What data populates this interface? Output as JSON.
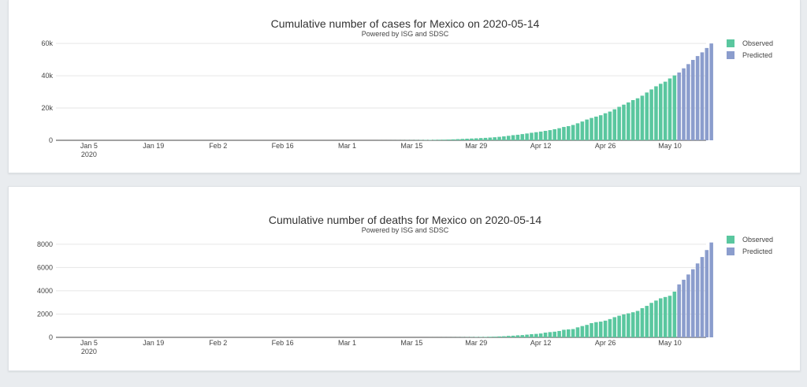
{
  "colors": {
    "observed": "#5ac79f",
    "predicted": "#8b9dcd"
  },
  "legend": {
    "observed": "Observed",
    "predicted": "Predicted"
  },
  "chart_data": [
    {
      "type": "bar",
      "title": "Cumulative number of cases for Mexico on 2020-05-14",
      "subtitle": "Powered by ISG and SDSC",
      "x_start": "2020-01-01",
      "x_ticks": [
        "Jan 5",
        "Jan 19",
        "Feb 2",
        "Feb 16",
        "Mar 1",
        "Mar 15",
        "Mar 29",
        "Apr 12",
        "Apr 26",
        "May 10"
      ],
      "x_year_label": "2020",
      "ylim": [
        0,
        63000
      ],
      "y_ticks": [
        "0",
        "20k",
        "40k",
        "60k"
      ],
      "y_tick_values": [
        0,
        20000,
        40000,
        60000
      ],
      "legend_position": "top-right",
      "grid": true,
      "series": [
        {
          "name": "Observed",
          "start_date": "2020-02-28",
          "values": [
            2,
            4,
            4,
            5,
            5,
            6,
            7,
            7,
            7,
            11,
            12,
            15,
            26,
            41,
            53,
            82,
            93,
            118,
            164,
            203,
            251,
            316,
            367,
            405,
            475,
            585,
            717,
            848,
            993,
            1094,
            1215,
            1378,
            1510,
            1688,
            1890,
            2143,
            2439,
            2785,
            3181,
            3441,
            3844,
            4219,
            4661,
            5014,
            5399,
            5847,
            6297,
            6875,
            7497,
            8261,
            8772,
            9501,
            10544,
            11633,
            12872,
            13842,
            14677,
            15529,
            16752,
            17799,
            19224,
            20739,
            22088,
            23471,
            24905,
            26025,
            27634,
            29616,
            31522,
            33460,
            35022,
            36327,
            38324,
            40186
          ]
        },
        {
          "name": "Predicted",
          "start_date": "2020-05-12",
          "values": [
            42000,
            44600,
            47200,
            49800,
            52200,
            54500,
            57200,
            60000
          ]
        }
      ]
    },
    {
      "type": "bar",
      "title": "Cumulative number of deaths for Mexico on 2020-05-14",
      "subtitle": "Powered by ISG and SDSC",
      "x_start": "2020-01-01",
      "x_ticks": [
        "Jan 5",
        "Jan 19",
        "Feb 2",
        "Feb 16",
        "Mar 1",
        "Mar 15",
        "Mar 29",
        "Apr 12",
        "Apr 26",
        "May 10"
      ],
      "x_year_label": "2020",
      "ylim": [
        0,
        8600
      ],
      "y_ticks": [
        "0",
        "2000",
        "4000",
        "6000",
        "8000"
      ],
      "y_tick_values": [
        0,
        2000,
        4000,
        6000,
        8000
      ],
      "legend_position": "top-right",
      "grid": true,
      "series": [
        {
          "name": "Observed",
          "start_date": "2020-03-18",
          "values": [
            1,
            2,
            2,
            2,
            4,
            5,
            6,
            8,
            12,
            16,
            20,
            28,
            29,
            37,
            50,
            60,
            79,
            94,
            125,
            141,
            174,
            194,
            233,
            273,
            296,
            332,
            406,
            449,
            486,
            546,
            650,
            686,
            712,
            857,
            970,
            1069,
            1221,
            1305,
            1351,
            1434,
            1569,
            1732,
            1859,
            1972,
            2061,
            2154,
            2271,
            2507,
            2704,
            2961,
            3160,
            3353,
            3465,
            3573,
            3926,
            4220
          ]
        },
        {
          "name": "Predicted",
          "start_date": "2020-05-12",
          "values": [
            4550,
            4950,
            5400,
            5850,
            6350,
            6900,
            7500,
            8150
          ]
        }
      ]
    }
  ]
}
